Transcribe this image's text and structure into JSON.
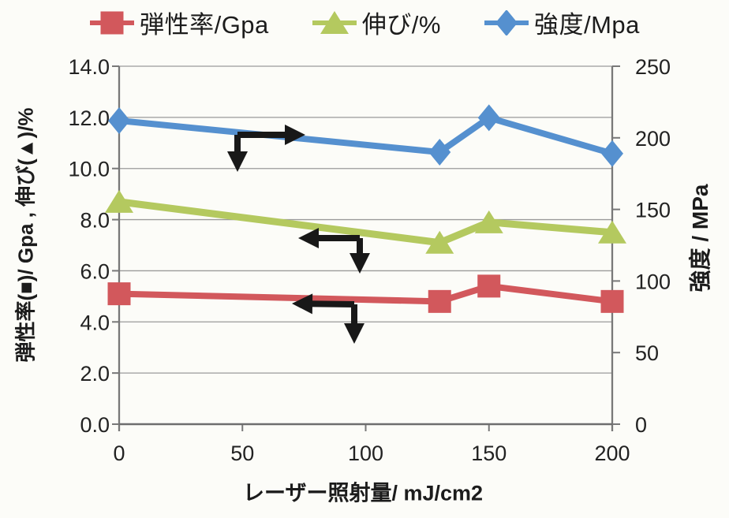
{
  "page": {
    "background": "#fcfcf8",
    "text_color": "#1c1c1c",
    "grid_color": "#9a9a9a",
    "axis_color": "#787878",
    "arrow_color": "#181818"
  },
  "legend": {
    "position": "top",
    "items": [
      {
        "label": "弾性率/Gpa",
        "marker": "square",
        "color": "#d2585c"
      },
      {
        "label": "伸び/%",
        "marker": "triangle",
        "color": "#b4c95f"
      },
      {
        "label": "強度/Mpa",
        "marker": "diamond",
        "color": "#5590cf"
      }
    ]
  },
  "chart_data": {
    "type": "line",
    "x": [
      0,
      130,
      150,
      200
    ],
    "series": [
      {
        "name": "弾性率/Gpa",
        "axis": "left",
        "marker": "square",
        "color": "#d2585c",
        "values": [
          5.1,
          4.8,
          5.4,
          4.8
        ]
      },
      {
        "name": "伸び/%",
        "axis": "left",
        "marker": "triangle",
        "color": "#b4c95f",
        "values": [
          8.7,
          7.1,
          7.9,
          7.5
        ]
      },
      {
        "name": "強度/Mpa",
        "axis": "right",
        "marker": "diamond",
        "color": "#5590cf",
        "values": [
          212,
          190,
          214,
          189
        ]
      }
    ],
    "xlabel": "レーザー照射量/ mJ/cm2",
    "ylabel_left": "弾性率(■)/ Gpa , 伸び(▲)/%",
    "ylabel_right": "強度 / MPa",
    "xlim": [
      0,
      200
    ],
    "xticks": [
      0,
      50,
      100,
      150,
      200
    ],
    "ylim_left": [
      0,
      14
    ],
    "yticks_left": [
      "0.0",
      "2.0",
      "4.0",
      "6.0",
      "8.0",
      "10.0",
      "12.0",
      "14.0"
    ],
    "ylim_right": [
      0,
      250
    ],
    "yticks_right": [
      0,
      50,
      100,
      150,
      200,
      250
    ],
    "grid": "horizontal",
    "annotations": [
      {
        "name": "pointer-to-right-axis-strength",
        "corner": [
          301,
          171
        ],
        "tips": [
          [
            387,
            171
          ],
          [
            301,
            218
          ]
        ]
      },
      {
        "name": "pointer-to-left-axis-elongation",
        "corner": [
          456,
          302
        ],
        "tips": [
          [
            378,
            302
          ],
          [
            456,
            347
          ]
        ]
      },
      {
        "name": "pointer-to-left-axis-modulus",
        "corner": [
          449,
          386
        ],
        "tips": [
          [
            370,
            385
          ],
          [
            449,
            436
          ]
        ]
      }
    ]
  }
}
